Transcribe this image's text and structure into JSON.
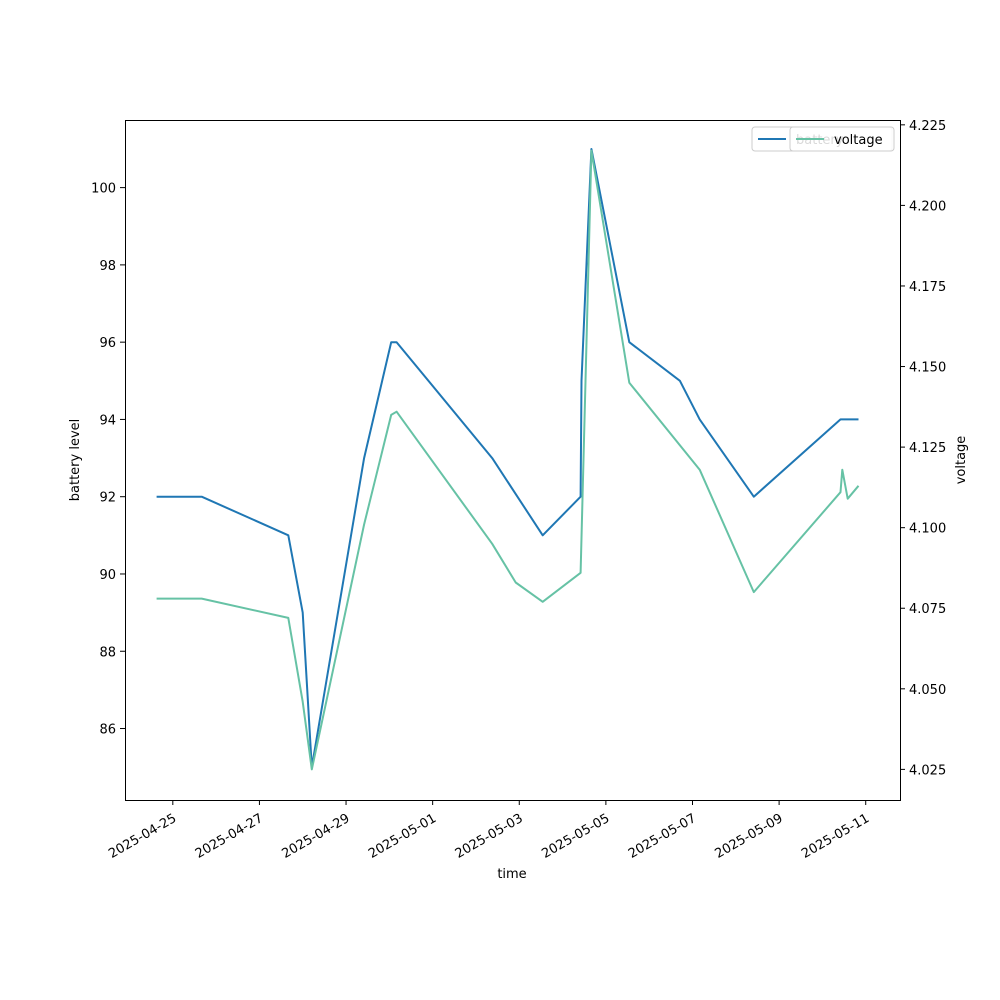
{
  "chart_data": {
    "type": "line",
    "title": "",
    "xlabel": "time",
    "ylabel": "battery level",
    "y2label": "voltage",
    "x_tick_labels": [
      "2025-04-25",
      "2025-04-27",
      "2025-04-29",
      "2025-05-01",
      "2025-05-03",
      "2025-05-05",
      "2025-05-07",
      "2025-05-09",
      "2025-05-11"
    ],
    "y_ticks": [
      86,
      88,
      90,
      92,
      94,
      96,
      98,
      100
    ],
    "y2_tick_labels": [
      "4.025",
      "4.050",
      "4.075",
      "4.100",
      "4.125",
      "4.150",
      "4.175",
      "4.200",
      "4.225"
    ],
    "xlim": [
      "2025-04-23 21:30",
      "2025-05-11 19:00"
    ],
    "ylim": [
      84.15,
      101.75
    ],
    "y2lim": [
      4.0155,
      4.2265
    ],
    "grid": false,
    "legend_placement": "top-right",
    "series": [
      {
        "name": "battery",
        "axis": "left",
        "color": "#1f77b4",
        "x": [
          "2025-04-24 15:00",
          "2025-04-25 16:00",
          "2025-04-27 16:00",
          "2025-04-28 00:00",
          "2025-04-28 05:00",
          "2025-04-29 10:00",
          "2025-04-30 01:00",
          "2025-04-30 04:00",
          "2025-05-02 09:00",
          "2025-05-03 13:00",
          "2025-05-04 10:00",
          "2025-05-04 10:30",
          "2025-05-04 16:00",
          "2025-05-05 13:00",
          "2025-05-06 17:00",
          "2025-05-07 04:00",
          "2025-05-08 10:00",
          "2025-05-10 10:00",
          "2025-05-10 20:00"
        ],
        "values": [
          92,
          92,
          91,
          89,
          85,
          93,
          96,
          96,
          93,
          91,
          92,
          95,
          101,
          96,
          95,
          94,
          92,
          94,
          94
        ]
      },
      {
        "name": "voltage",
        "axis": "right",
        "color": "#66c2a5",
        "x": [
          "2025-04-24 15:00",
          "2025-04-25 16:00",
          "2025-04-27 16:00",
          "2025-04-28 00:00",
          "2025-04-28 05:00",
          "2025-04-29 10:00",
          "2025-04-30 01:00",
          "2025-04-30 04:00",
          "2025-05-02 09:00",
          "2025-05-02 22:00",
          "2025-05-03 13:00",
          "2025-05-04 10:00",
          "2025-05-04 16:00",
          "2025-05-05 13:00",
          "2025-05-07 04:00",
          "2025-05-08 10:00",
          "2025-05-10 10:00",
          "2025-05-10 11:00",
          "2025-05-10 14:00",
          "2025-05-10 20:00"
        ],
        "values": [
          4.078,
          4.078,
          4.072,
          4.046,
          4.025,
          4.101,
          4.135,
          4.136,
          4.095,
          4.083,
          4.077,
          4.086,
          4.217,
          4.145,
          4.118,
          4.08,
          4.111,
          4.118,
          4.109,
          4.113
        ]
      }
    ]
  }
}
